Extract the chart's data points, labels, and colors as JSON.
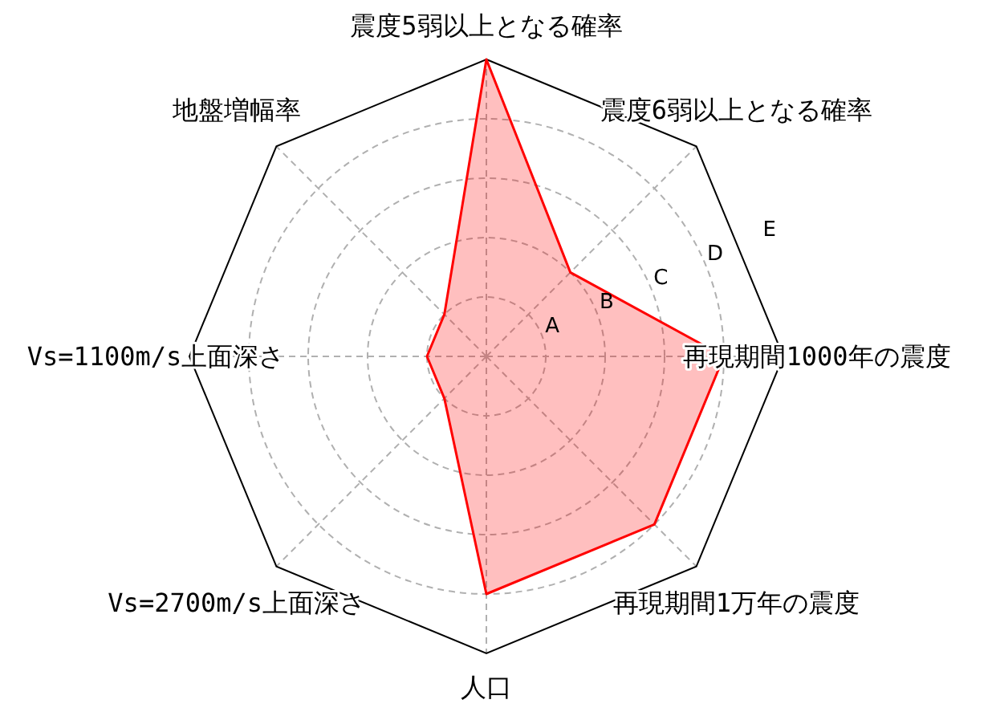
{
  "chart_data": {
    "type": "radar",
    "categories": [
      "震度5弱以上となる確率",
      "震度6弱以上となる確率",
      "再現期間1000年の震度",
      "再現期間1万年の震度",
      "人口",
      "Vs=2700m/s上面深さ",
      "Vs=1100m/s上面深さ",
      "地盤増幅率"
    ],
    "series": [
      {
        "color": "#ff0000",
        "values": [
          5,
          2,
          4,
          4,
          4,
          1,
          1,
          1
        ]
      }
    ],
    "ylim": [
      0,
      5
    ],
    "yticks": [
      {
        "value": 1,
        "label": "A"
      },
      {
        "value": 2,
        "label": "B"
      },
      {
        "value": 3,
        "label": "C"
      },
      {
        "value": 4,
        "label": "D"
      },
      {
        "value": 5,
        "label": "E"
      }
    ],
    "grid": true
  }
}
